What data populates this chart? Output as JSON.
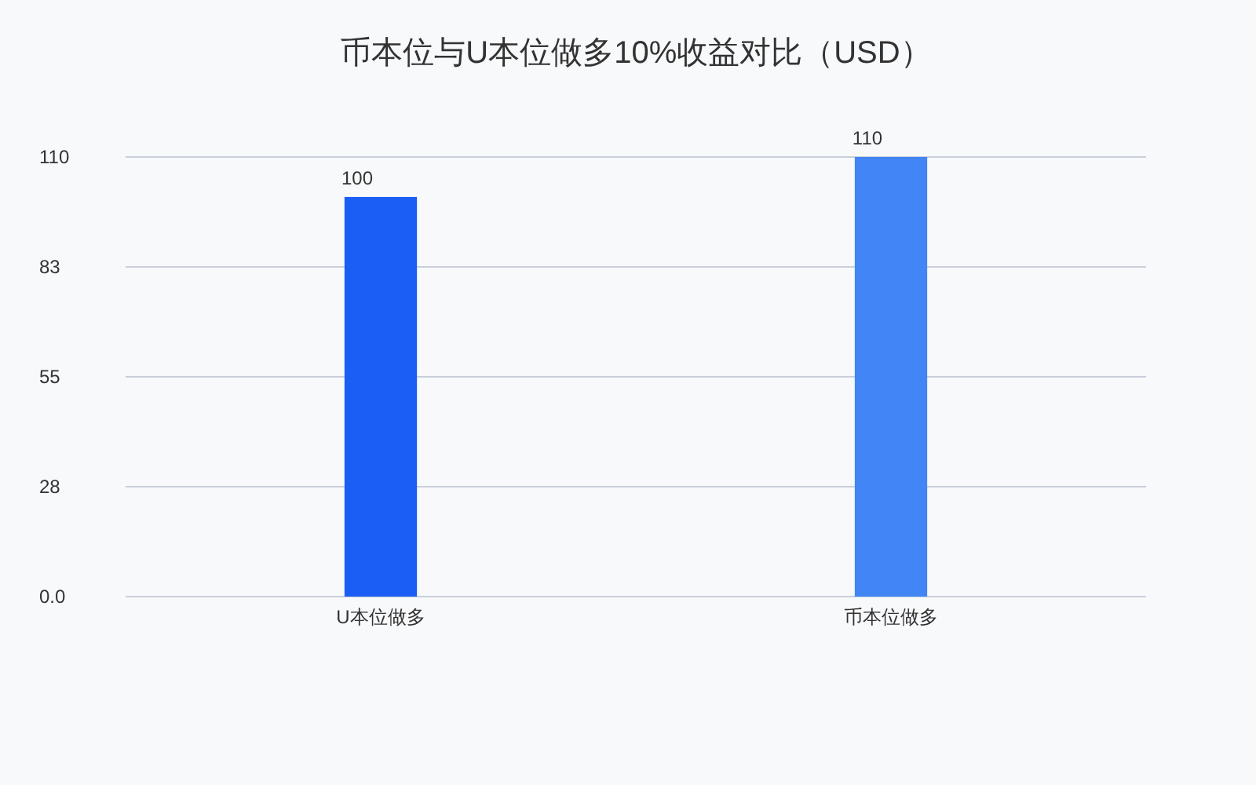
{
  "chart_data": {
    "type": "bar",
    "title": "币本位与U本位做多10%收益对比（USD）",
    "categories": [
      "U本位做多",
      "币本位做多"
    ],
    "values": [
      100,
      110
    ],
    "colors": [
      "#1b5ef5",
      "#4285f4"
    ],
    "ylim": [
      0,
      110
    ],
    "yticks": [
      {
        "value": 0,
        "label": "0.0"
      },
      {
        "value": 27.5,
        "label": "28"
      },
      55,
      {
        "value": 82.5,
        "label": "83"
      },
      110
    ],
    "grid": "y",
    "data_labels": true
  }
}
